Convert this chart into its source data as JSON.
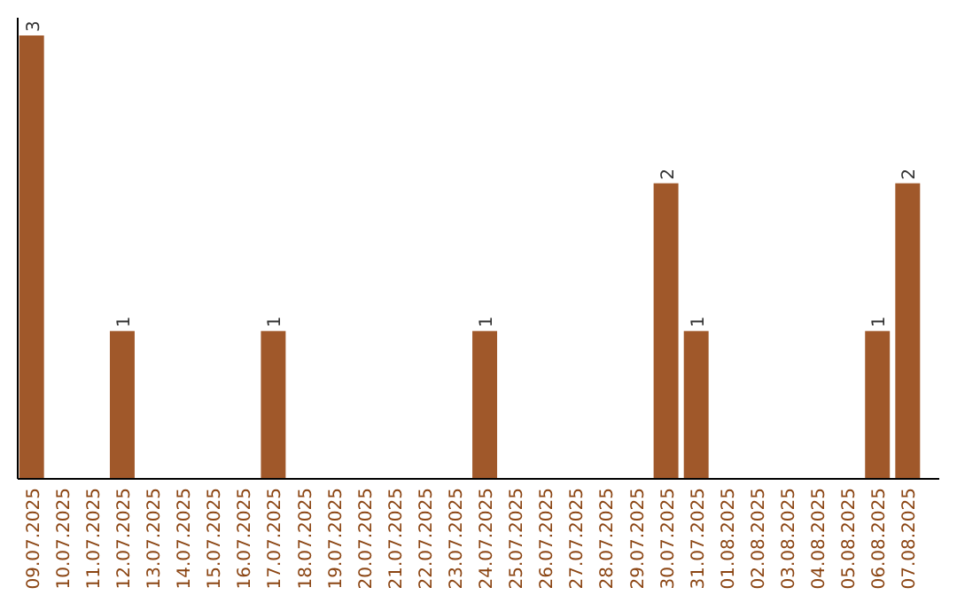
{
  "chart_data": {
    "type": "bar",
    "categories": [
      "09.07.2025",
      "10.07.2025",
      "11.07.2025",
      "12.07.2025",
      "13.07.2025",
      "14.07.2025",
      "15.07.2025",
      "16.07.2025",
      "17.07.2025",
      "18.07.2025",
      "19.07.2025",
      "20.07.2025",
      "21.07.2025",
      "22.07.2025",
      "23.07.2025",
      "24.07.2025",
      "25.07.2025",
      "26.07.2025",
      "27.07.2025",
      "28.07.2025",
      "29.07.2025",
      "30.07.2025",
      "31.07.2025",
      "01.08.2025",
      "02.08.2025",
      "03.08.2025",
      "04.08.2025",
      "05.08.2025",
      "06.08.2025",
      "07.08.2025"
    ],
    "values": [
      3,
      0,
      0,
      1,
      0,
      0,
      0,
      0,
      1,
      0,
      0,
      0,
      0,
      0,
      0,
      1,
      0,
      0,
      0,
      0,
      0,
      2,
      1,
      0,
      0,
      0,
      0,
      0,
      1,
      2
    ],
    "value_labels": [
      "3",
      null,
      null,
      "1",
      null,
      null,
      null,
      null,
      "1",
      null,
      null,
      null,
      null,
      null,
      null,
      "1",
      null,
      null,
      null,
      null,
      null,
      "2",
      "1",
      null,
      null,
      null,
      null,
      null,
      "1",
      "2"
    ],
    "color": "#a0582a"
  }
}
